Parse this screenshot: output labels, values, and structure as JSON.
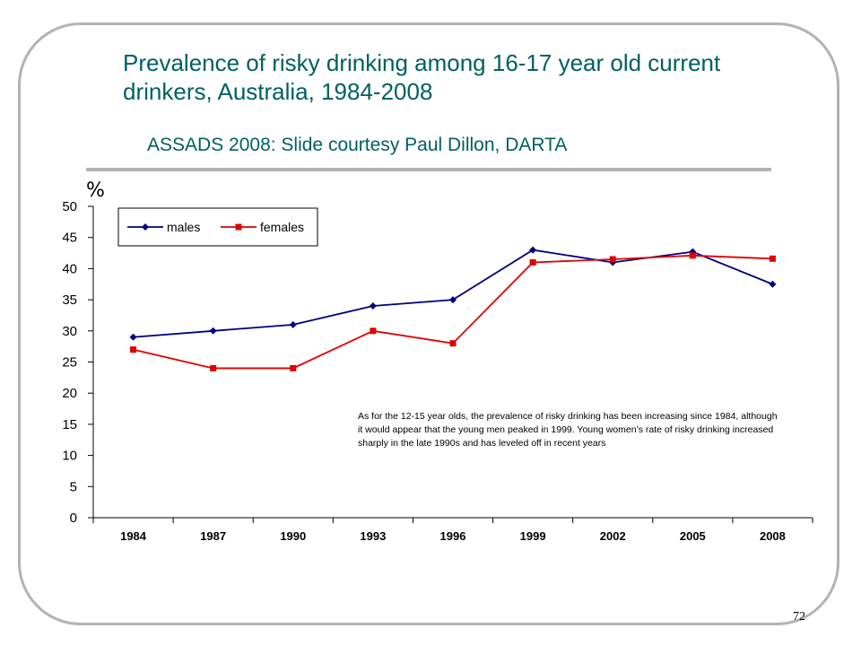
{
  "slide": {
    "title": "Prevalence of risky drinking among 16-17 year old current drinkers, Australia, 1984-2008",
    "subtitle": "ASSADS 2008: Slide courtesy Paul Dillon, DARTA",
    "y_unit": "%",
    "page_number": "72",
    "note": "As for the 12-15 year olds, the prevalence of risky drinking has been increasing since 1984, although it would appear that the young men peaked in 1999. Young women’s rate of risky drinking increased sharply in the late 1990s and has leveled off in recent years"
  },
  "chart_data": {
    "type": "line",
    "title": "",
    "xlabel": "",
    "ylabel": "%",
    "categories": [
      "1984",
      "1987",
      "1990",
      "1993",
      "1996",
      "1999",
      "2002",
      "2005",
      "2008"
    ],
    "ylim": [
      0,
      50
    ],
    "yticks": [
      0,
      5,
      10,
      15,
      20,
      25,
      30,
      35,
      40,
      45,
      50
    ],
    "grid": false,
    "legend_position": "top-left",
    "series": [
      {
        "name": "males",
        "color": "#000080",
        "marker": "diamond",
        "values": [
          29,
          30,
          31,
          34,
          35,
          43,
          41,
          42.7,
          37.5
        ]
      },
      {
        "name": "females",
        "color": "#e00000",
        "marker": "square",
        "values": [
          27,
          24,
          24,
          30,
          28,
          41,
          41.5,
          42.1,
          41.6
        ]
      }
    ]
  }
}
